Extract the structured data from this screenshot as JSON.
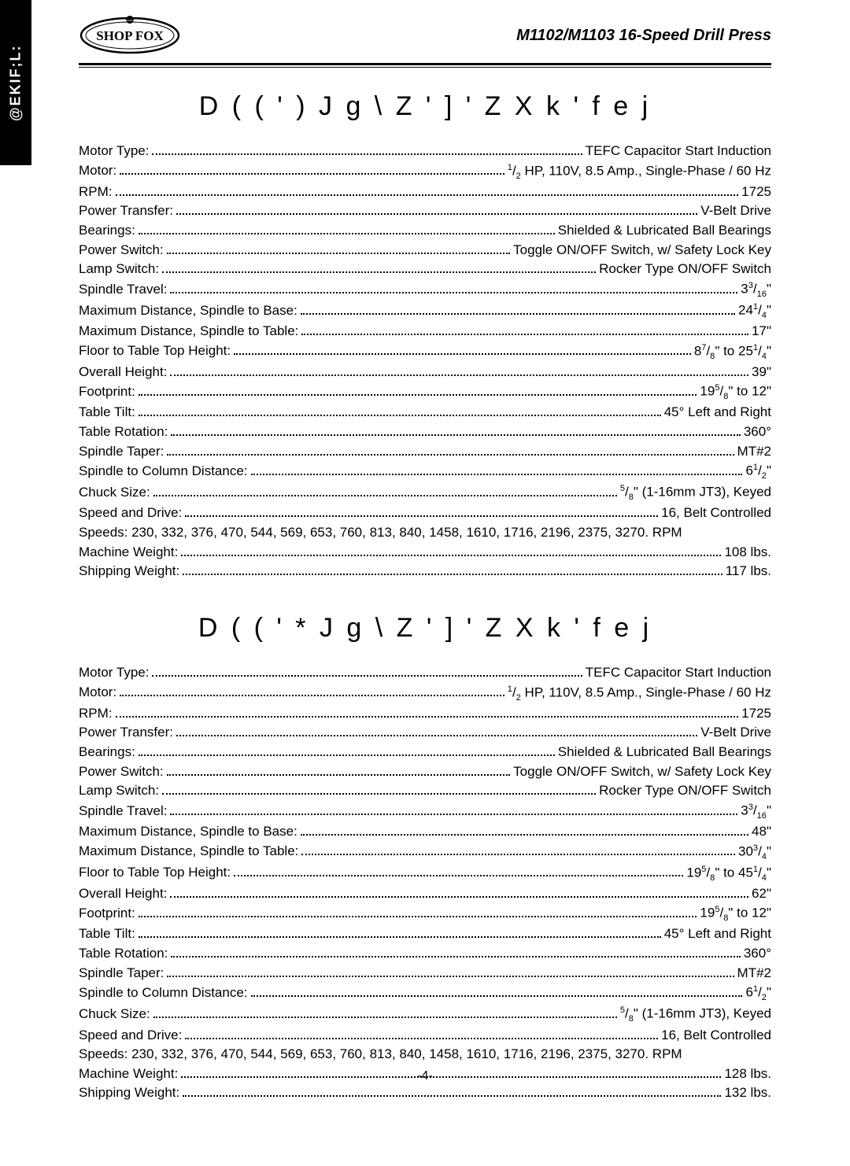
{
  "side_tab": "@EKIF;L:",
  "doc_title": "M1102/M1103 16-Speed Drill Press",
  "page_number": "-4-",
  "sections": [
    {
      "title": "D ( ( ' ) J g \\ Z ' ] ' Z X k ' f e j",
      "specs": [
        {
          "label": "Motor Type:",
          "value": "TEFC Capacitor Start Induction"
        },
        {
          "label": "Motor:",
          "value": "<sup>1</sup>/<sub>2</sub> HP, 110V, 8.5 Amp., Single-Phase / 60 Hz"
        },
        {
          "label": "RPM:",
          "value": "1725"
        },
        {
          "label": "Power Transfer:",
          "value": "V-Belt Drive"
        },
        {
          "label": "Bearings:",
          "value": "Shielded & Lubricated Ball Bearings"
        },
        {
          "label": "Power Switch:",
          "value": "Toggle ON/OFF Switch, w/ Safety Lock Key"
        },
        {
          "label": "Lamp Switch:",
          "value": "Rocker Type ON/OFF Switch"
        },
        {
          "label": "Spindle Travel:",
          "value": "3<sup>3</sup>/<sub>16</sub>\""
        },
        {
          "label": "Maximum Distance, Spindle to Base:",
          "value": "24<sup>1</sup>/<sub>4</sub>\""
        },
        {
          "label": "Maximum Distance, Spindle to Table:",
          "value": "17\""
        },
        {
          "label": "Floor to Table Top Height:",
          "value": "8<sup>7</sup>/<sub>8</sub>\" to 25<sup>1</sup>/<sub>4</sub>\""
        },
        {
          "label": "Overall Height:",
          "value": "39\""
        },
        {
          "label": "Footprint:",
          "value": "19<sup>5</sup>/<sub>8</sub>\" to 12\""
        },
        {
          "label": "Table Tilt:",
          "value": "45° Left and Right"
        },
        {
          "label": "Table Rotation:",
          "value": "360°"
        },
        {
          "label": "Spindle Taper:",
          "value": "MT#2"
        },
        {
          "label": "Spindle to Column Distance:",
          "value": "6<sup>1</sup>/<sub>2</sub>\""
        },
        {
          "label": "Chuck Size:",
          "value": "<sup>5</sup>/<sub>8</sub>\" (1-16mm JT3), Keyed"
        },
        {
          "label": "Speed and Drive:",
          "value": "16, Belt Controlled"
        },
        {
          "full": "Speeds:  230, 332, 376, 470, 544, 569, 653, 760, 813, 840, 1458, 1610, 1716, 2196, 2375, 3270. RPM"
        },
        {
          "label": "Machine Weight:",
          "value": "108 lbs."
        },
        {
          "label": "Shipping Weight:",
          "value": "117 lbs."
        }
      ]
    },
    {
      "title": "D ( ( ' * J g \\ Z ' ] ' Z X k ' f e j",
      "specs": [
        {
          "label": "Motor Type:",
          "value": "TEFC Capacitor Start Induction"
        },
        {
          "label": "Motor:",
          "value": "<sup>1</sup>/<sub>2</sub> HP, 110V, 8.5 Amp., Single-Phase / 60 Hz"
        },
        {
          "label": "RPM:",
          "value": "1725"
        },
        {
          "label": "Power Transfer:",
          "value": "V-Belt Drive"
        },
        {
          "label": "Bearings:",
          "value": "Shielded & Lubricated Ball Bearings"
        },
        {
          "label": "Power Switch:",
          "value": "Toggle ON/OFF Switch, w/ Safety Lock Key"
        },
        {
          "label": "Lamp Switch:",
          "value": "Rocker Type ON/OFF Switch"
        },
        {
          "label": "Spindle Travel:",
          "value": "3<sup>3</sup>/<sub>16</sub>\""
        },
        {
          "label": "Maximum Distance, Spindle to Base:",
          "value": "48\""
        },
        {
          "label": "Maximum Distance, Spindle to Table:",
          "value": "30<sup>3</sup>/<sub>4</sub>\""
        },
        {
          "label": "Floor to Table Top Height:",
          "value": "19<sup>5</sup>/<sub>8</sub>\" to 45<sup>1</sup>/<sub>4</sub>\""
        },
        {
          "label": "Overall Height:",
          "value": "62\""
        },
        {
          "label": "Footprint:",
          "value": "19<sup>5</sup>/<sub>8</sub>\" to 12\""
        },
        {
          "label": "Table Tilt:",
          "value": "45° Left and Right"
        },
        {
          "label": "Table Rotation:",
          "value": "360°"
        },
        {
          "label": "Spindle Taper:",
          "value": "MT#2"
        },
        {
          "label": "Spindle to Column Distance:",
          "value": "6<sup>1</sup>/<sub>2</sub>\""
        },
        {
          "label": "Chuck Size:",
          "value": "<sup>5</sup>/<sub>8</sub>\" (1-16mm JT3), Keyed"
        },
        {
          "label": "Speed and Drive:",
          "value": "16, Belt Controlled"
        },
        {
          "full": "Speeds:  230, 332, 376, 470, 544, 569, 653, 760, 813, 840, 1458, 1610, 1716, 2196, 2375, 3270. RPM"
        },
        {
          "label": "Machine Weight:",
          "value": "128 lbs."
        },
        {
          "label": "Shipping Weight:",
          "value": "132 lbs."
        }
      ]
    }
  ]
}
